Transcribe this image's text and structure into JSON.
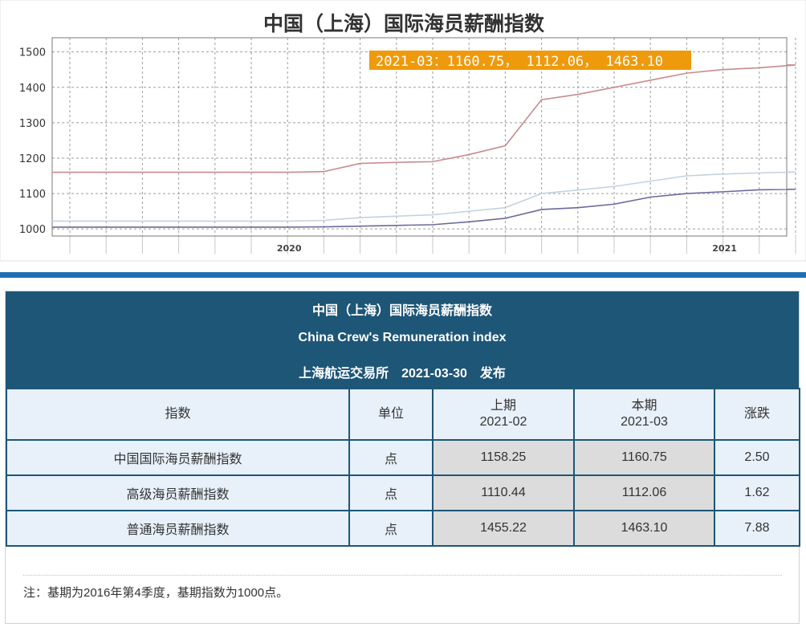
{
  "chart_data": {
    "type": "line",
    "title": "中国（上海）国际海员薪酬指数",
    "xlabel": "",
    "ylabel": "",
    "x_ticks": [
      "2020",
      "2021"
    ],
    "y_ticks": [
      1000,
      1100,
      1200,
      1300,
      1400,
      1500
    ],
    "ylim": [
      980,
      1540
    ],
    "grid": true,
    "tooltip": "2021-03：1160.75， 1112.06， 1463.10",
    "x": [
      "2019-07",
      "2019-08",
      "2019-09",
      "2019-10",
      "2019-11",
      "2019-12",
      "2020-01",
      "2020-02",
      "2020-03",
      "2020-04",
      "2020-05",
      "2020-06",
      "2020-07",
      "2020-08",
      "2020-09",
      "2020-10",
      "2020-11",
      "2020-12",
      "2021-01",
      "2021-02",
      "2021-03"
    ],
    "series": [
      {
        "color": "#c98a8e",
        "values": [
          1160,
          1160,
          1160,
          1160,
          1160,
          1160,
          1160,
          1162,
          1185,
          1188,
          1190,
          1210,
          1235,
          1365,
          1380,
          1400,
          1420,
          1440,
          1450,
          1455.22,
          1463.1
        ]
      },
      {
        "color": "#c2d4dc",
        "values": [
          1022,
          1022,
          1022,
          1022,
          1022,
          1022,
          1022,
          1024,
          1032,
          1036,
          1040,
          1050,
          1060,
          1100,
          1110,
          1120,
          1135,
          1150,
          1155,
          1158.25,
          1160.75
        ]
      },
      {
        "color": "#6b6a9e",
        "values": [
          1005,
          1005,
          1005,
          1005,
          1005,
          1005,
          1005,
          1006,
          1008,
          1010,
          1012,
          1020,
          1030,
          1055,
          1060,
          1070,
          1090,
          1100,
          1105,
          1110.44,
          1112.06
        ]
      }
    ]
  },
  "table": {
    "title_cn": "中国（上海）国际海员薪酬指数",
    "title_en": "China Crew's Remuneration index",
    "publisher": "上海航运交易所　2021-03-30　发布",
    "headers": {
      "index": "指数",
      "unit": "单位",
      "prev_label": "上期",
      "prev_period": "2021-02",
      "curr_label": "本期",
      "curr_period": "2021-03",
      "change": "涨跌"
    },
    "rows": [
      {
        "name": "中国国际海员薪酬指数",
        "unit": "点",
        "prev": "1158.25",
        "curr": "1160.75",
        "change": "2.50"
      },
      {
        "name": "高级海员薪酬指数",
        "unit": "点",
        "prev": "1110.44",
        "curr": "1112.06",
        "change": "1.62"
      },
      {
        "name": "普通海员薪酬指数",
        "unit": "点",
        "prev": "1455.22",
        "curr": "1463.10",
        "change": "7.88"
      }
    ],
    "note": "注：基期为2016年第4季度，基期指数为1000点。"
  }
}
